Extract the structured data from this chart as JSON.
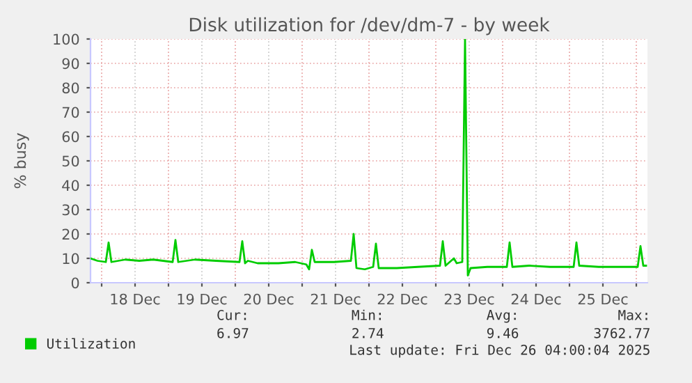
{
  "chart_data": {
    "type": "line",
    "title": "Disk utilization for /dev/dm-7 - by week",
    "ylabel": "% busy",
    "x": [
      "2025-12-17T20:00",
      "2025-12-17T22:30",
      "2025-12-18T01:30",
      "2025-12-18T02:30",
      "2025-12-18T03:30",
      "2025-12-18T08:30",
      "2025-12-18T13:30",
      "2025-12-18T18:30",
      "2025-12-19T01:30",
      "2025-12-19T02:30",
      "2025-12-19T03:30",
      "2025-12-19T09:30",
      "2025-12-19T17:00",
      "2025-12-20T01:30",
      "2025-12-20T02:30",
      "2025-12-20T03:30",
      "2025-12-20T04:30",
      "2025-12-20T08:00",
      "2025-12-20T15:30",
      "2025-12-20T21:30",
      "2025-12-21T01:30",
      "2025-12-21T02:30",
      "2025-12-21T03:30",
      "2025-12-21T04:30",
      "2025-12-21T11:30",
      "2025-12-21T17:30",
      "2025-12-21T18:30",
      "2025-12-21T19:30",
      "2025-12-21T22:30",
      "2025-12-22T01:30",
      "2025-12-22T02:30",
      "2025-12-22T03:30",
      "2025-12-22T10:00",
      "2025-12-22T17:30",
      "2025-12-23T01:30",
      "2025-12-23T02:30",
      "2025-12-23T03:30",
      "2025-12-23T06:30",
      "2025-12-23T07:30",
      "2025-12-23T09:30",
      "2025-12-23T10:30",
      "2025-12-23T11:30",
      "2025-12-23T12:30",
      "2025-12-23T18:30",
      "2025-12-24T01:30",
      "2025-12-24T02:30",
      "2025-12-24T03:30",
      "2025-12-24T09:30",
      "2025-12-24T17:00",
      "2025-12-25T01:30",
      "2025-12-25T02:30",
      "2025-12-25T03:30",
      "2025-12-25T10:30",
      "2025-12-25T18:00",
      "2025-12-26T00:30",
      "2025-12-26T01:30",
      "2025-12-26T02:30",
      "2025-12-26T03:30"
    ],
    "series": [
      {
        "name": "Utilization",
        "color": "#00cc00",
        "values": [
          10,
          9,
          8.5,
          16.5,
          8.5,
          9.5,
          9,
          9.5,
          8.5,
          17.5,
          8.5,
          9.5,
          9,
          8.5,
          17,
          8,
          9,
          8,
          8,
          8.5,
          7.5,
          5.5,
          13.5,
          8.5,
          8.5,
          9,
          20,
          6,
          5.5,
          6.5,
          16,
          6,
          6,
          6.5,
          7,
          17,
          7,
          10,
          8,
          8.5,
          100,
          3,
          6,
          6.5,
          6.5,
          16.5,
          6.5,
          7,
          6.5,
          6.5,
          16.5,
          7,
          6.5,
          6.5,
          6.5,
          15,
          7,
          7
        ]
      }
    ],
    "xlim": [
      "2025-12-17T20:00",
      "2025-12-26T04:00"
    ],
    "xticks": [
      {
        "value": "2025-12-18T00:00",
        "label": null
      },
      {
        "value": "2025-12-18T12:00",
        "label": "18 Dec"
      },
      {
        "value": "2025-12-19T00:00",
        "label": null
      },
      {
        "value": "2025-12-19T12:00",
        "label": "19 Dec"
      },
      {
        "value": "2025-12-20T00:00",
        "label": null
      },
      {
        "value": "2025-12-20T12:00",
        "label": "20 Dec"
      },
      {
        "value": "2025-12-21T00:00",
        "label": null
      },
      {
        "value": "2025-12-21T12:00",
        "label": "21 Dec"
      },
      {
        "value": "2025-12-22T00:00",
        "label": null
      },
      {
        "value": "2025-12-22T12:00",
        "label": "22 Dec"
      },
      {
        "value": "2025-12-23T00:00",
        "label": null
      },
      {
        "value": "2025-12-23T12:00",
        "label": "23 Dec"
      },
      {
        "value": "2025-12-24T00:00",
        "label": null
      },
      {
        "value": "2025-12-24T12:00",
        "label": "24 Dec"
      },
      {
        "value": "2025-12-25T00:00",
        "label": null
      },
      {
        "value": "2025-12-25T12:00",
        "label": "25 Dec"
      },
      {
        "value": "2025-12-26T00:00",
        "label": null
      }
    ],
    "ylim": [
      0,
      100
    ],
    "yticks": [
      0,
      10,
      20,
      30,
      40,
      50,
      60,
      70,
      80,
      90,
      100
    ],
    "grid": true,
    "legend": "bottom left",
    "marker": "none",
    "line_style": "solid",
    "annotations": [
      "Cur:",
      "Min:",
      "Avg:",
      "Max:",
      "6.97",
      "2.74",
      "9.46",
      "3762.77",
      "Last update: Fri Dec 26 04:00:04 2025"
    ]
  }
}
